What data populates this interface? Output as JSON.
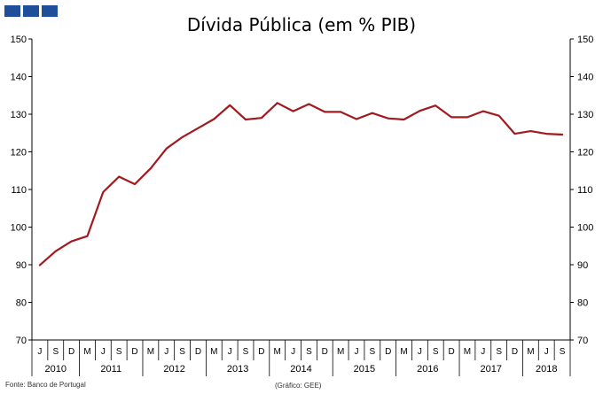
{
  "chart_data": {
    "type": "line",
    "title": "Dívida Pública (em % PIB)",
    "source": "Fonte: Banco de Portugal",
    "note": "(Gráfico: GEE)",
    "ylim": [
      70,
      150
    ],
    "yticks": [
      "70",
      "80",
      "90",
      "100",
      "110",
      "120",
      "130",
      "140",
      "150"
    ],
    "y_axis_both_sides": true,
    "grid": false,
    "x_month_labels": [
      "J",
      "S",
      "D",
      "M",
      "J",
      "S",
      "D",
      "M",
      "J",
      "S",
      "D",
      "M",
      "J",
      "S",
      "D",
      "M",
      "J",
      "S",
      "D",
      "M",
      "J",
      "S",
      "D",
      "M",
      "J",
      "S",
      "D",
      "M",
      "J",
      "S",
      "D",
      "M",
      "J",
      "S"
    ],
    "x_year_groups": [
      {
        "label": "2010",
        "start": 0,
        "end": 2
      },
      {
        "label": "2011",
        "start": 3,
        "end": 6
      },
      {
        "label": "2012",
        "start": 7,
        "end": 10
      },
      {
        "label": "2013",
        "start": 11,
        "end": 14
      },
      {
        "label": "2014",
        "start": 15,
        "end": 18
      },
      {
        "label": "2015",
        "start": 19,
        "end": 22
      },
      {
        "label": "2016",
        "start": 23,
        "end": 26
      },
      {
        "label": "2017",
        "start": 27,
        "end": 30
      },
      {
        "label": "2018",
        "start": 31,
        "end": 33
      }
    ],
    "series": [
      {
        "color": "#a11a1f",
        "values": [
          89.9,
          93.6,
          96.2,
          97.6,
          109.3,
          113.4,
          111.4,
          115.6,
          120.9,
          123.9,
          126.3,
          128.7,
          132.4,
          128.6,
          129.0,
          133.0,
          130.8,
          132.7,
          130.6,
          130.6,
          128.7,
          130.3,
          128.9,
          128.6,
          130.9,
          132.3,
          129.2,
          129.2,
          130.8,
          129.6,
          124.8,
          125.5,
          124.8,
          124.6
        ]
      }
    ]
  }
}
